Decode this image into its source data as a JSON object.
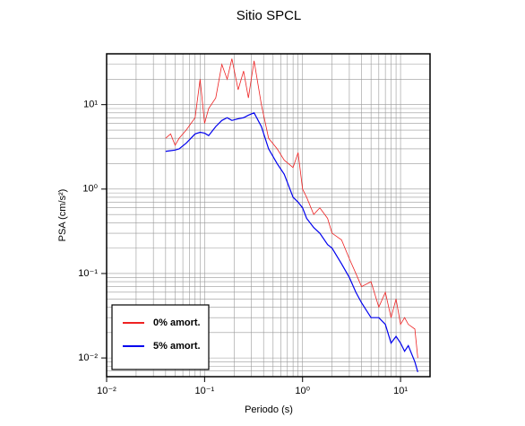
{
  "chart_data": {
    "type": "line",
    "title": "Sitio SPCL",
    "x_label": "Periodo (s)",
    "y_label": "PSA (cm/s²)",
    "log_x": true,
    "log_y": true,
    "grid": true,
    "legend_position": "lower left",
    "xlim": [
      0.01,
      20
    ],
    "ylim": [
      0.006,
      40
    ],
    "xticks": [
      {
        "value": 0.01,
        "label": "10⁻²"
      },
      {
        "value": 0.1,
        "label": "10⁻¹"
      },
      {
        "value": 1,
        "label": "10⁰"
      },
      {
        "value": 10,
        "label": "10¹"
      }
    ],
    "yticks": [
      {
        "value": 0.01,
        "label": "10⁻²"
      },
      {
        "value": 0.1,
        "label": "10⁻¹"
      },
      {
        "value": 1,
        "label": "10⁰"
      },
      {
        "value": 10,
        "label": "10¹"
      }
    ],
    "x": [
      0.04,
      0.045,
      0.05,
      0.055,
      0.065,
      0.08,
      0.09,
      0.1,
      0.11,
      0.13,
      0.15,
      0.17,
      0.19,
      0.22,
      0.25,
      0.28,
      0.32,
      0.38,
      0.45,
      0.55,
      0.65,
      0.8,
      0.9,
      1.0,
      1.1,
      1.3,
      1.5,
      1.8,
      2,
      2.5,
      3,
      3.5,
      4,
      5,
      6,
      7,
      8,
      9,
      10,
      11,
      12,
      14,
      15
    ],
    "series": [
      {
        "name": "0% amort.",
        "color": "#ee2222",
        "values": [
          4,
          4.5,
          3.3,
          4,
          5,
          7,
          20,
          6,
          9,
          12,
          30,
          20,
          35,
          15,
          25,
          12,
          33,
          10,
          4,
          3,
          2.2,
          1.8,
          2.7,
          1.0,
          0.8,
          0.5,
          0.6,
          0.45,
          0.3,
          0.25,
          0.15,
          0.1,
          0.07,
          0.08,
          0.04,
          0.06,
          0.03,
          0.05,
          0.025,
          0.03,
          0.025,
          0.022,
          0.01
        ]
      },
      {
        "name": "5% amort.",
        "color": "#0000ee",
        "values": [
          2.8,
          2.85,
          2.9,
          3.0,
          3.5,
          4.5,
          4.7,
          4.6,
          4.3,
          5.5,
          6.5,
          7,
          6.5,
          6.8,
          7,
          7.5,
          8,
          5.5,
          3,
          2,
          1.5,
          0.8,
          0.7,
          0.6,
          0.45,
          0.35,
          0.3,
          0.22,
          0.2,
          0.13,
          0.09,
          0.06,
          0.045,
          0.03,
          0.03,
          0.025,
          0.015,
          0.018,
          0.015,
          0.012,
          0.014,
          0.009,
          0.0068
        ]
      }
    ]
  }
}
